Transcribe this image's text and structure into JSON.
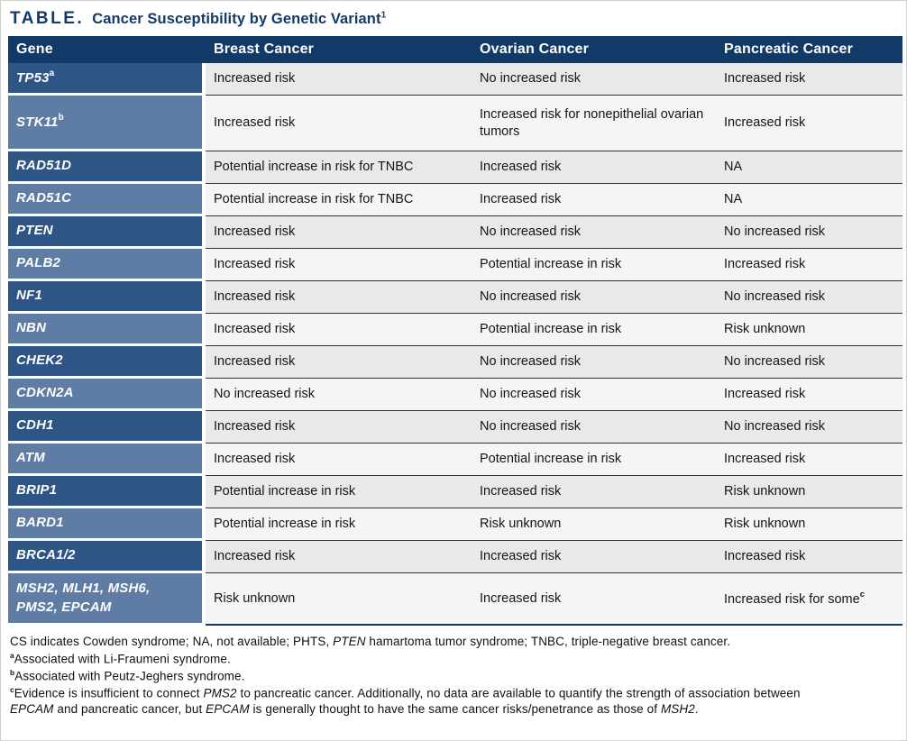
{
  "title": {
    "label": "TABLE.",
    "text": "Cancer Susceptibility by Genetic Variant",
    "sup": "1"
  },
  "colors": {
    "navy": "#123a69",
    "gene_dark_blue": "#2e5586",
    "gene_light_blue": "#5f7ca4",
    "row_gray": "#e7e9eb",
    "row_light": "#f4f5f6",
    "text_dark": "#141414"
  },
  "table": {
    "columns": [
      {
        "key": "gene",
        "label": "Gene"
      },
      {
        "key": "breast",
        "label": "Breast Cancer"
      },
      {
        "key": "ovarian",
        "label": "Ovarian Cancer"
      },
      {
        "key": "pancreatic",
        "label": "Pancreatic Cancer"
      }
    ],
    "rows": [
      {
        "gene": "TP53",
        "gene_sup": "a",
        "breast": "Increased risk",
        "ovarian": "No increased risk",
        "pancreatic": "Increased risk"
      },
      {
        "gene": "STK11",
        "gene_sup": "b",
        "breast": "Increased risk",
        "ovarian": "Increased risk for nonepithelial ovarian tumors",
        "pancreatic": "Increased risk"
      },
      {
        "gene": "RAD51D",
        "breast": "Potential increase in risk for TNBC",
        "ovarian": "Increased risk",
        "pancreatic": "NA"
      },
      {
        "gene": "RAD51C",
        "breast": "Potential increase in risk for TNBC",
        "ovarian": "Increased risk",
        "pancreatic": "NA"
      },
      {
        "gene": "PTEN",
        "breast": "Increased risk",
        "ovarian": "No increased risk",
        "pancreatic": "No increased risk"
      },
      {
        "gene": "PALB2",
        "breast": "Increased risk",
        "ovarian": "Potential increase in risk",
        "pancreatic": "Increased risk"
      },
      {
        "gene": "NF1",
        "breast": "Increased risk",
        "ovarian": "No increased risk",
        "pancreatic": "No increased risk"
      },
      {
        "gene": "NBN",
        "breast": "Increased risk",
        "ovarian": "Potential increase in risk",
        "pancreatic": "Risk unknown"
      },
      {
        "gene": "CHEK2",
        "breast": "Increased risk",
        "ovarian": "No increased risk",
        "pancreatic": "No increased risk"
      },
      {
        "gene": "CDKN2A",
        "breast": "No increased risk",
        "ovarian": "No increased risk",
        "pancreatic": "Increased risk"
      },
      {
        "gene": "CDH1",
        "breast": "Increased risk",
        "ovarian": "No increased risk",
        "pancreatic": "No increased risk"
      },
      {
        "gene": "ATM",
        "breast": "Increased risk",
        "ovarian": "Potential increase in risk",
        "pancreatic": "Increased risk"
      },
      {
        "gene": "BRIP1",
        "breast": "Potential increase in risk",
        "ovarian": "Increased risk",
        "pancreatic": "Risk unknown"
      },
      {
        "gene": "BARD1",
        "breast": "Potential increase in risk",
        "ovarian": "Risk unknown",
        "pancreatic": "Risk unknown"
      },
      {
        "gene": "BRCA1/2",
        "breast": "Increased risk",
        "ovarian": "Increased risk",
        "pancreatic": "Increased risk"
      },
      {
        "gene": "MSH2, MLH1, MSH6, PMS2, EPCAM",
        "breast": "Risk unknown",
        "ovarian": "Increased risk",
        "pancreatic": "Increased risk for some",
        "pancreatic_sup": "c"
      }
    ]
  },
  "footnotes": [
    {
      "sup": "",
      "segments": [
        {
          "text": "CS indicates Cowden syndrome; NA, not available; PHTS, "
        },
        {
          "text": "PTEN",
          "italic": true
        },
        {
          "text": " hamartoma tumor syndrome; TNBC, triple-negative breast cancer."
        }
      ]
    },
    {
      "sup": "a",
      "segments": [
        {
          "text": "Associated with Li-Fraumeni syndrome."
        }
      ]
    },
    {
      "sup": "b",
      "segments": [
        {
          "text": "Associated with Peutz-Jeghers syndrome."
        }
      ]
    },
    {
      "sup": "c",
      "segments": [
        {
          "text": "Evidence is insufficient to connect "
        },
        {
          "text": "PMS2",
          "italic": true
        },
        {
          "text": " to pancreatic cancer. Additionally, no data are available to quantify the strength of association between "
        },
        {
          "text": "EPCAM",
          "italic": true
        },
        {
          "text": " and pancreatic cancer, but "
        },
        {
          "text": "EPCAM",
          "italic": true
        },
        {
          "text": " is generally thought to have the same cancer risks/penetrance as those of "
        },
        {
          "text": "MSH2",
          "italic": true
        },
        {
          "text": "."
        }
      ]
    }
  ]
}
